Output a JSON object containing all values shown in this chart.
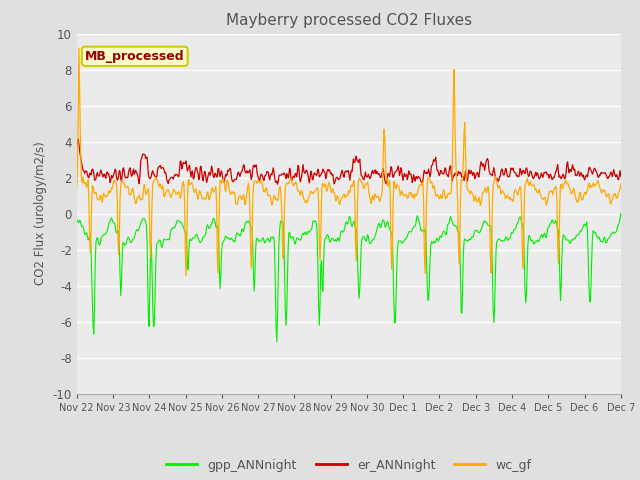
{
  "title": "Mayberry processed CO2 Fluxes",
  "ylabel": "CO2 Flux (urology/m2/s)",
  "ylim": [
    -10,
    10
  ],
  "yticks": [
    -10,
    -8,
    -6,
    -4,
    -2,
    0,
    2,
    4,
    6,
    8,
    10
  ],
  "xtick_labels": [
    "Nov 22",
    "Nov 23",
    "Nov 24",
    "Nov 25",
    "Nov 26",
    "Nov 27",
    "Nov 28",
    "Nov 29",
    "Nov 30",
    "Dec 1",
    "Dec 2",
    "Dec 3",
    "Dec 4",
    "Dec 5",
    "Dec 6",
    "Dec 7"
  ],
  "legend_label": "MB_processed",
  "line_labels": [
    "gpp_ANNnight",
    "er_ANNnight",
    "wc_gf"
  ],
  "line_colors": [
    "#00ee00",
    "#cc0000",
    "#ffaa00"
  ],
  "bg_color": "#e0e0e0",
  "plot_bg": "#ebebeb",
  "title_color": "#555555",
  "tick_color": "#555555",
  "annotation_text_color": "#990000",
  "annotation_bg": "#ffffcc",
  "annotation_border": "#cccc00"
}
